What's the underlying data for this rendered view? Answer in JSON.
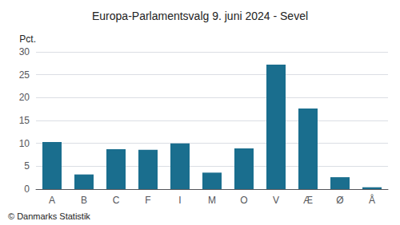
{
  "chart_data": {
    "type": "bar",
    "title": "Europa-Parlamentsvalg 9. juni 2024 - Sevel",
    "ylabel": "Pct.",
    "annotations": [
      "© Danmarks Statistik"
    ],
    "categories": [
      "A",
      "B",
      "C",
      "F",
      "I",
      "M",
      "O",
      "V",
      "Æ",
      "Ø",
      "Å"
    ],
    "values": [
      10.3,
      3.2,
      8.7,
      8.6,
      10.0,
      3.6,
      8.9,
      27.2,
      17.6,
      2.6,
      0.4
    ],
    "color": "#1a6e8e",
    "ylim": [
      0,
      30
    ],
    "yticks": [
      0,
      5,
      10,
      15,
      20,
      25,
      30
    ],
    "grid": true
  }
}
